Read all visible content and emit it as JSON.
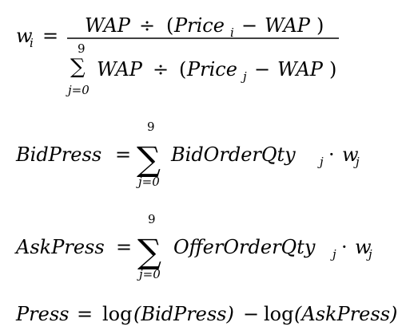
{
  "formulas": {
    "weight": {
      "lhs_var": "w",
      "lhs_sub": "i",
      "equals": "=",
      "numerator": {
        "wap_1": "WAP",
        "div_op": "÷",
        "lparen": "(",
        "price": "Price",
        "price_sub": "i",
        "minus": "−",
        "wap_2": "WAP",
        "rparen": ")"
      },
      "sum_upper": "9",
      "sum_lower": "j=0",
      "sum_symbol": "∑",
      "denominator": {
        "wap_1": "WAP",
        "div_op": "÷",
        "lparen": "(",
        "price": "Price",
        "price_sub": "j",
        "minus": "−",
        "wap_2": "WAP",
        "rparen": ")"
      }
    },
    "bid_press": {
      "lhs": "BidPress",
      "equals": "=",
      "sum_upper": "9",
      "sum_lower": "j=0",
      "sum_symbol": "∑",
      "qty": "BidOrderQty",
      "qty_sub": "j",
      "dot": "·",
      "weight": "w",
      "weight_sub": "j"
    },
    "ask_press": {
      "lhs": "AskPress",
      "equals": "=",
      "sum_upper": "9",
      "sum_lower": "j=0",
      "sum_symbol": "∑",
      "qty": "OfferOrderQty",
      "qty_sub": "j",
      "dot": "·",
      "weight": "w",
      "weight_sub": "j"
    },
    "press": {
      "lhs": "Press",
      "equals": "=",
      "log_1": "log",
      "arg_1": "(BidPress)",
      "minus": "−",
      "log_2": "log",
      "arg_2": "(AskPress)"
    }
  }
}
